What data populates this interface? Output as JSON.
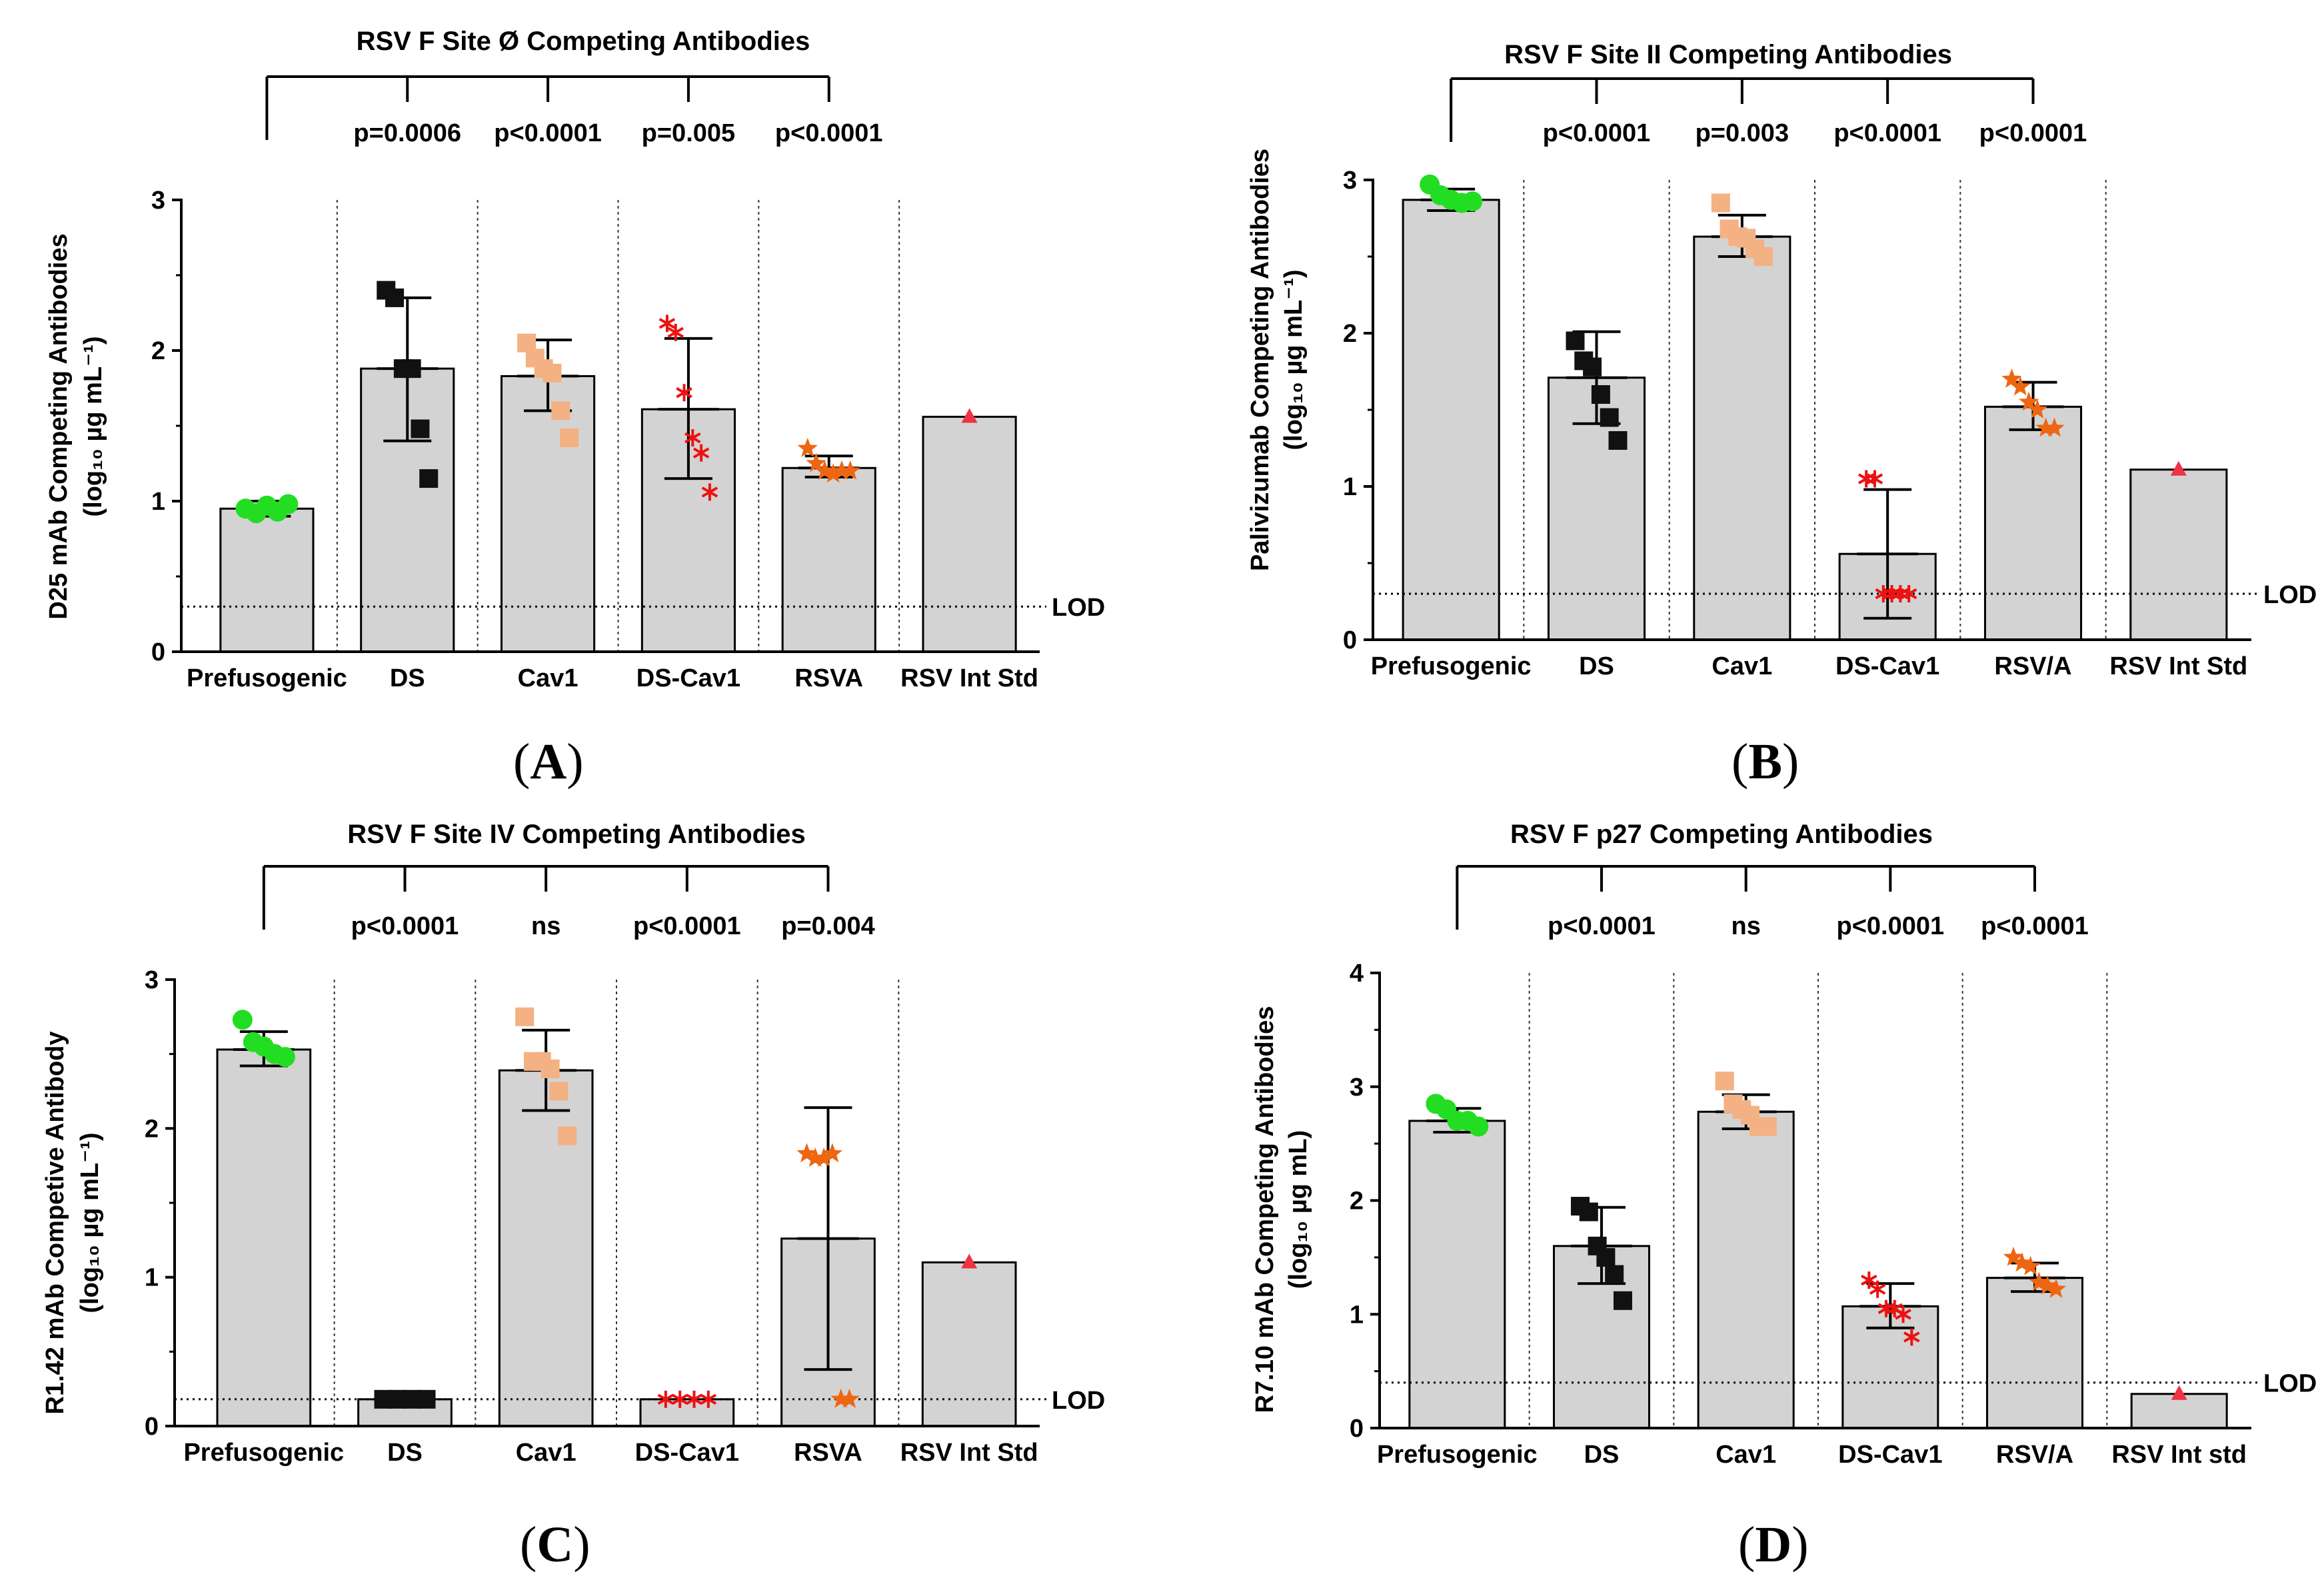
{
  "colors": {
    "bar_fill": "#d3d3d3",
    "green": "#22dd22",
    "black": "#111111",
    "tan": "#f4b183",
    "red": "#ee1111",
    "orange": "#ee6611",
    "triangle": "#ee3344"
  },
  "chart_data": [
    {
      "panel": "A",
      "caption": "A",
      "type": "bar",
      "title": "RSV F Site Ø Competing Antibodies",
      "ylabel_main": "D25 mAb Competing Antibodies",
      "ylabel_unit": "(log₁₀ µg mL⁻¹)",
      "categories": [
        "Prefusogenic",
        "DS",
        "Cav1",
        "DS-Cav1",
        "RSVA",
        "RSV Int Std"
      ],
      "ylim": [
        0,
        3
      ],
      "yticks": [
        "0",
        "1",
        "2",
        "3"
      ],
      "lod": 0.3,
      "lod_label": "LOD",
      "values": [
        0.95,
        1.88,
        1.83,
        1.61,
        1.22,
        1.56
      ],
      "err_low": [
        0.9,
        1.4,
        1.6,
        1.15,
        1.16,
        null
      ],
      "err_high": [
        1.0,
        2.35,
        2.07,
        2.08,
        1.3,
        null
      ],
      "markers": [
        "circle",
        "square",
        "square",
        "asterisk",
        "star",
        "triangle"
      ],
      "points": [
        [
          0.95,
          0.92,
          0.97,
          0.93,
          0.98
        ],
        [
          2.4,
          2.35,
          1.88,
          1.88,
          1.48,
          1.15
        ],
        [
          2.05,
          1.95,
          1.88,
          1.85,
          1.6,
          1.42
        ],
        [
          2.18,
          2.12,
          1.72,
          1.42,
          1.32,
          1.06
        ],
        [
          1.35,
          1.25,
          1.2,
          1.18,
          1.2,
          1.2
        ],
        [
          1.56
        ]
      ],
      "pvalues": [
        "p=0.0006",
        "p<0.0001",
        "p=0.005",
        "p<0.0001"
      ]
    },
    {
      "panel": "B",
      "caption": "B",
      "type": "bar",
      "title": "RSV F Site II Competing Antibodies",
      "ylabel_main": "Palivizumab Competing Antibodies",
      "ylabel_unit": "(log₁₀ µg mL⁻¹)",
      "categories": [
        "Prefusogenic",
        "DS",
        "Cav1",
        "DS-Cav1",
        "RSV/A",
        "RSV Int Std"
      ],
      "ylim": [
        0,
        3
      ],
      "yticks": [
        "0",
        "1",
        "2",
        "3"
      ],
      "lod": 0.3,
      "lod_label": "LOD",
      "values": [
        2.87,
        1.71,
        2.63,
        0.56,
        1.52,
        1.11
      ],
      "err_low": [
        2.8,
        1.41,
        2.5,
        0.14,
        1.37,
        null
      ],
      "err_high": [
        2.94,
        2.01,
        2.77,
        0.98,
        1.68,
        null
      ],
      "markers": [
        "circle",
        "square",
        "square",
        "asterisk",
        "star",
        "triangle"
      ],
      "points": [
        [
          2.97,
          2.9,
          2.87,
          2.85,
          2.86
        ],
        [
          1.95,
          1.82,
          1.78,
          1.6,
          1.45,
          1.3
        ],
        [
          2.85,
          2.68,
          2.63,
          2.62,
          2.55,
          2.5
        ],
        [
          1.05,
          1.05,
          0.3,
          0.3,
          0.3,
          0.3
        ],
        [
          1.7,
          1.65,
          1.55,
          1.5,
          1.38,
          1.38
        ],
        [
          1.11
        ]
      ],
      "pvalues": [
        "p<0.0001",
        "p=0.003",
        "p<0.0001",
        "p<0.0001"
      ]
    },
    {
      "panel": "C",
      "caption": "C",
      "type": "bar",
      "title": "RSV F Site IV Competing Antibodies",
      "ylabel_main": "R1.42 mAb Competive Antibody",
      "ylabel_unit": "(log₁₀ µg mL⁻¹)",
      "categories": [
        "Prefusogenic",
        "DS",
        "Cav1",
        "DS-Cav1",
        "RSVA",
        "RSV Int Std"
      ],
      "ylim": [
        0,
        3
      ],
      "yticks": [
        "0",
        "1",
        "2",
        "3"
      ],
      "lod": 0.18,
      "lod_label": "LOD",
      "values": [
        2.53,
        0.18,
        2.39,
        0.18,
        1.26,
        1.1
      ],
      "err_low": [
        2.42,
        null,
        2.12,
        null,
        0.38,
        null
      ],
      "err_high": [
        2.65,
        null,
        2.66,
        null,
        2.14,
        null
      ],
      "markers": [
        "circle",
        "square",
        "square",
        "asterisk",
        "star",
        "triangle"
      ],
      "points": [
        [
          2.73,
          2.58,
          2.55,
          2.5,
          2.48
        ],
        [
          0.18,
          0.18,
          0.18,
          0.18
        ],
        [
          2.75,
          2.45,
          2.45,
          2.4,
          2.25,
          1.95
        ],
        [
          0.18,
          0.18,
          0.18,
          0.18
        ],
        [
          1.83,
          1.8,
          1.8,
          1.83,
          0.18,
          0.18
        ],
        [
          1.1
        ]
      ],
      "pvalues": [
        "p<0.0001",
        "ns",
        "p<0.0001",
        "p=0.004"
      ]
    },
    {
      "panel": "D",
      "caption": "D",
      "type": "bar",
      "title": "RSV F p27 Competing Antibodies",
      "ylabel_main": "R7.10 mAb  Competing Antibodies",
      "ylabel_unit": "(log₁₀ µg mL)",
      "categories": [
        "Prefusogenic",
        "DS",
        "Cav1",
        "DS-Cav1",
        "RSV/A",
        "RSV Int std"
      ],
      "ylim": [
        0,
        4
      ],
      "yticks": [
        "0",
        "1",
        "2",
        "3",
        "4"
      ],
      "lod": 0.4,
      "lod_label": "LOD",
      "values": [
        2.7,
        1.6,
        2.78,
        1.07,
        1.32,
        0.3
      ],
      "err_low": [
        2.6,
        1.27,
        2.63,
        0.88,
        1.2,
        null
      ],
      "err_high": [
        2.81,
        1.94,
        2.93,
        1.27,
        1.45,
        null
      ],
      "markers": [
        "circle",
        "square",
        "square",
        "asterisk",
        "star",
        "triangle"
      ],
      "points": [
        [
          2.85,
          2.8,
          2.7,
          2.7,
          2.65
        ],
        [
          1.95,
          1.9,
          1.6,
          1.5,
          1.35,
          1.12
        ],
        [
          3.05,
          2.85,
          2.8,
          2.75,
          2.65,
          2.65
        ],
        [
          1.3,
          1.22,
          1.05,
          1.05,
          1.0,
          0.8
        ],
        [
          1.5,
          1.45,
          1.42,
          1.28,
          1.25,
          1.22
        ],
        [
          0.3
        ]
      ],
      "pvalues": [
        "p<0.0001",
        "ns",
        "p<0.0001",
        "p<0.0001"
      ]
    }
  ]
}
